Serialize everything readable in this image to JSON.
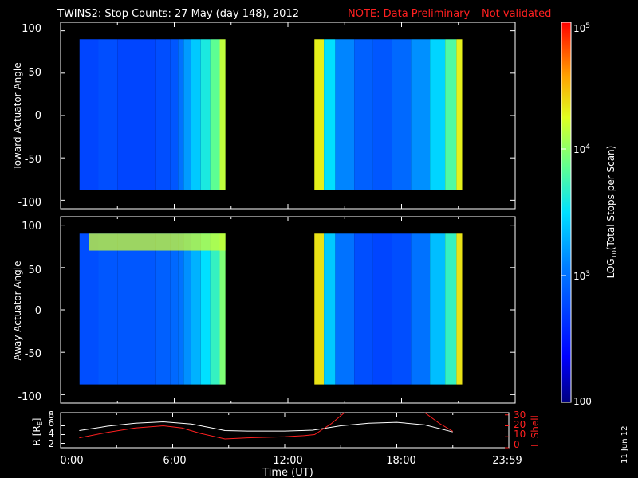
{
  "header": {
    "title": "TWINS2: Stop Counts: 27 May (day 148), 2012",
    "note": "NOTE: Data Preliminary – Not validated"
  },
  "panels": {
    "top_ylabel": "Toward Actuator Angle",
    "bottom_ylabel": "Away Actuator Angle",
    "yticks": [
      "100",
      "50",
      "0",
      "-50",
      "-100"
    ]
  },
  "orbit": {
    "r_label": "R [R",
    "r_label_sub": "E",
    "r_label_end": "]",
    "lshell_label": "L Shell",
    "r_ticks": [
      "8",
      "6",
      "4",
      "2"
    ],
    "l_ticks": [
      "30",
      "20",
      "10",
      "0"
    ]
  },
  "xaxis": {
    "label": "Time (UT)",
    "ticks": [
      "0:00",
      "6:00",
      "12:00",
      "18:00",
      "23:59"
    ]
  },
  "colorbar": {
    "label_prefix": "LOG",
    "label_sub": "10",
    "label_suffix": "(Total Stops per Scan)",
    "tick_top": "10",
    "tick_top_sup": "5",
    "tick_mid": "10",
    "tick_mid_sup": "4",
    "tick_low": "10",
    "tick_low_sup": "3",
    "tick_bottom": "100"
  },
  "date_stamp": "11 Jun 12",
  "colors": {
    "red": "#ff2020",
    "white": "#ffffff",
    "background": "#000000"
  },
  "chart_data": [
    {
      "type": "heatmap",
      "title": "TWINS2: Stop Counts: 27 May (day 148), 2012",
      "ylabel": "Toward Actuator Angle",
      "xlabel": "",
      "xlim_hours": [
        0,
        24
      ],
      "ylim": [
        -110,
        110
      ],
      "zscale": "log",
      "zlim": [
        100,
        100000
      ],
      "data_intervals_hours": [
        [
          1.0,
          8.7
        ],
        [
          13.4,
          21.2
        ]
      ],
      "angle_range": [
        -88,
        90
      ],
      "column_log10_values": [
        {
          "t": 1.0,
          "v": 2.75
        },
        {
          "t": 2.0,
          "v": 2.8
        },
        {
          "t": 3.0,
          "v": 2.75
        },
        {
          "t": 4.0,
          "v": 2.75
        },
        {
          "t": 5.0,
          "v": 2.8
        },
        {
          "t": 5.8,
          "v": 2.85
        },
        {
          "t": 6.2,
          "v": 3.0
        },
        {
          "t": 6.5,
          "v": 3.2
        },
        {
          "t": 6.9,
          "v": 3.4
        },
        {
          "t": 7.4,
          "v": 3.6
        },
        {
          "t": 7.9,
          "v": 3.85
        },
        {
          "t": 8.4,
          "v": 4.15
        },
        {
          "t": 13.4,
          "v": 4.3
        },
        {
          "t": 13.9,
          "v": 3.5
        },
        {
          "t": 14.5,
          "v": 3.1
        },
        {
          "t": 15.5,
          "v": 2.9
        },
        {
          "t": 16.5,
          "v": 2.85
        },
        {
          "t": 17.5,
          "v": 2.95
        },
        {
          "t": 18.5,
          "v": 3.15
        },
        {
          "t": 19.5,
          "v": 3.45
        },
        {
          "t": 20.3,
          "v": 3.8
        },
        {
          "t": 20.9,
          "v": 4.3
        }
      ]
    },
    {
      "type": "heatmap",
      "ylabel": "Away Actuator Angle",
      "xlabel": "",
      "xlim_hours": [
        0,
        24
      ],
      "ylim": [
        -110,
        110
      ],
      "zscale": "log",
      "zlim": [
        100,
        100000
      ],
      "data_intervals_hours": [
        [
          1.0,
          8.7
        ],
        [
          13.4,
          21.2
        ]
      ],
      "angle_range": [
        -88,
        90
      ],
      "column_log10_values": [
        {
          "t": 1.0,
          "v": 2.8
        },
        {
          "t": 2.0,
          "v": 2.85
        },
        {
          "t": 3.0,
          "v": 2.85
        },
        {
          "t": 4.0,
          "v": 2.85
        },
        {
          "t": 5.0,
          "v": 2.9
        },
        {
          "t": 5.8,
          "v": 2.95
        },
        {
          "t": 6.2,
          "v": 3.0
        },
        {
          "t": 6.5,
          "v": 3.15
        },
        {
          "t": 6.9,
          "v": 3.3
        },
        {
          "t": 7.4,
          "v": 3.5
        },
        {
          "t": 7.9,
          "v": 3.7
        },
        {
          "t": 8.4,
          "v": 3.95
        },
        {
          "t": 13.4,
          "v": 4.35
        },
        {
          "t": 13.9,
          "v": 3.4
        },
        {
          "t": 14.5,
          "v": 3.0
        },
        {
          "t": 15.5,
          "v": 2.8
        },
        {
          "t": 16.5,
          "v": 2.75
        },
        {
          "t": 17.5,
          "v": 2.8
        },
        {
          "t": 18.5,
          "v": 3.0
        },
        {
          "t": 19.5,
          "v": 3.35
        },
        {
          "t": 20.3,
          "v": 3.7
        },
        {
          "t": 20.9,
          "v": 4.35
        }
      ],
      "high_band": {
        "angle_range": [
          70,
          90
        ],
        "time_range_hours": [
          1.5,
          8.7
        ],
        "log10_value": 4.2
      }
    },
    {
      "type": "line",
      "xlabel": "Time (UT)",
      "xlim_hours": [
        0,
        24
      ],
      "series": [
        {
          "name": "R [RE]",
          "color": "#ffffff",
          "axis": "left",
          "ylim": [
            1,
            9
          ],
          "points": [
            [
              1.0,
              4.9
            ],
            [
              2.5,
              5.9
            ],
            [
              4.0,
              6.6
            ],
            [
              5.5,
              6.9
            ],
            [
              7.0,
              6.4
            ],
            [
              8.0,
              5.6
            ],
            [
              8.8,
              4.9
            ],
            [
              10.0,
              4.8
            ],
            [
              12.0,
              4.8
            ],
            [
              13.5,
              5.0
            ],
            [
              15.0,
              6.0
            ],
            [
              16.5,
              6.6
            ],
            [
              18.0,
              6.8
            ],
            [
              19.5,
              6.2
            ],
            [
              21.0,
              4.6
            ]
          ]
        },
        {
          "name": "L Shell",
          "color": "#ff2020",
          "axis": "right",
          "ylim": [
            0,
            32
          ],
          "points": [
            [
              1.0,
              9
            ],
            [
              2.5,
              14
            ],
            [
              4.0,
              18
            ],
            [
              5.5,
              20
            ],
            [
              6.5,
              18
            ],
            [
              7.5,
              13
            ],
            [
              8.8,
              8
            ],
            [
              10.0,
              9
            ],
            [
              12.0,
              10
            ],
            [
              13.0,
              11
            ],
            [
              13.6,
              12
            ],
            [
              14.5,
              22
            ],
            [
              15.2,
              32
            ]
          ],
          "points_segment2": [
            [
              19.5,
              32
            ],
            [
              20.3,
              22
            ],
            [
              21.0,
              15
            ]
          ]
        }
      ],
      "r_ticks": [
        2,
        4,
        6,
        8
      ],
      "l_ticks": [
        0,
        10,
        20,
        30
      ]
    }
  ]
}
